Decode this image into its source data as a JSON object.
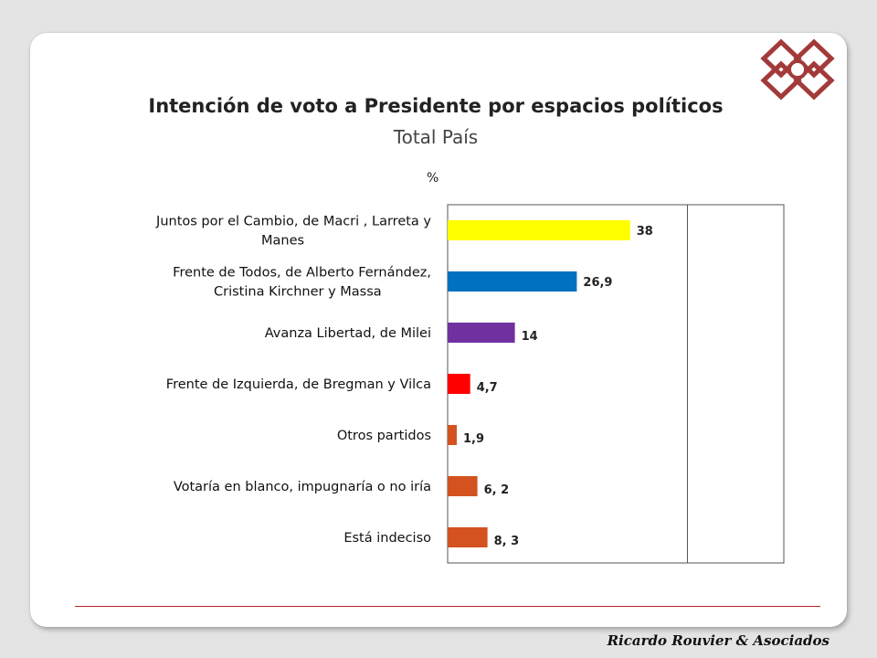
{
  "footer": {
    "company": "Ricardo Rouvier & Asociados"
  },
  "colors": {
    "brand": "#a33a3a",
    "footer_line": "#c02424"
  },
  "chart_data": {
    "type": "bar",
    "orientation": "horizontal",
    "title": "Intención de voto a Presidente por espacios políticos",
    "subtitle": "Total País",
    "unit": "%",
    "xlim": [
      0,
      70
    ],
    "grid": false,
    "categories": [
      [
        "Juntos por el Cambio, de Macri , Larreta y",
        "Manes"
      ],
      [
        "Frente de Todos, de Alberto Fernández,",
        "Cristina Kirchner y Massa"
      ],
      [
        "Avanza Libertad, de Milei"
      ],
      [
        "Frente de Izquierda, de Bregman y Vilca"
      ],
      [
        "Otros partidos"
      ],
      [
        "Votaría en blanco, impugnaría o no iría"
      ],
      [
        "Está indeciso"
      ]
    ],
    "values": [
      38,
      26.9,
      14,
      4.7,
      1.9,
      6.2,
      8.3
    ],
    "value_labels": [
      "38",
      "26,9",
      "14",
      "4,7",
      "1,9",
      "6, 2",
      "8, 3"
    ],
    "bar_colors": [
      "#ffff00",
      "#0070c0",
      "#7030a0",
      "#ff0000",
      "#d35220",
      "#d35220",
      "#d35220"
    ]
  }
}
